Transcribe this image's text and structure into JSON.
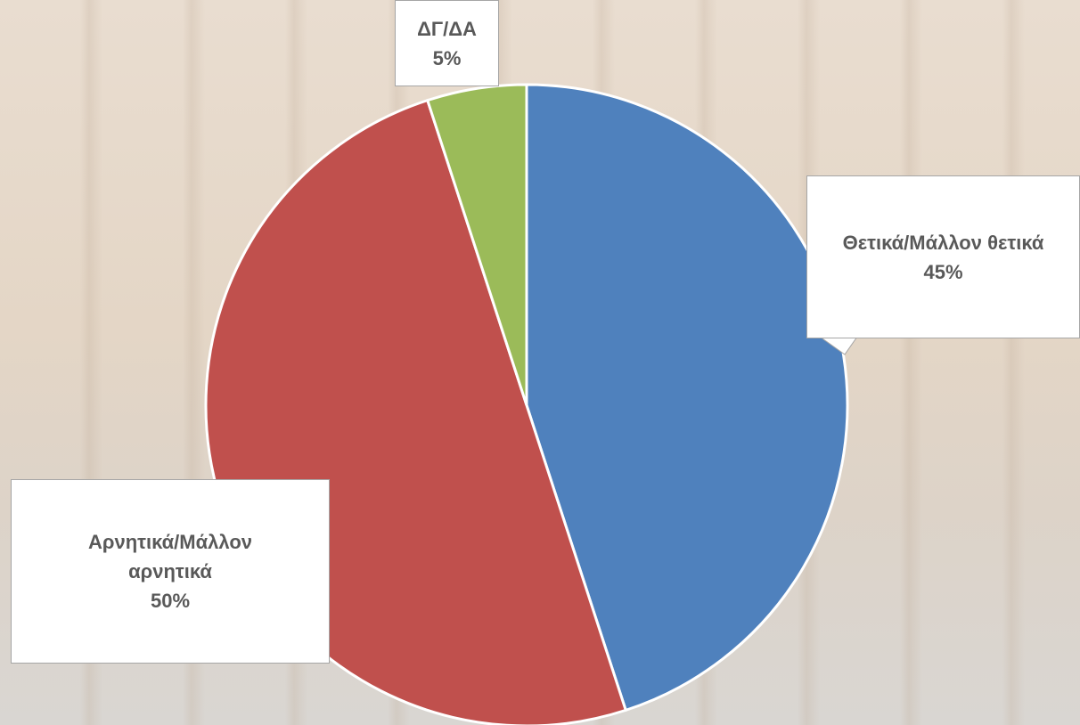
{
  "chart_data": {
    "type": "pie",
    "categories": [
      "Θετικά/Μάλλον θετικά",
      "Αρνητικά/Μάλλον αρνητικά",
      "ΔΓ/ΔΑ"
    ],
    "values": [
      45,
      50,
      5
    ],
    "value_labels": [
      "45%",
      "50%",
      "5%"
    ],
    "colors": [
      "#4f81bd",
      "#c0504d",
      "#9bbb59"
    ]
  }
}
